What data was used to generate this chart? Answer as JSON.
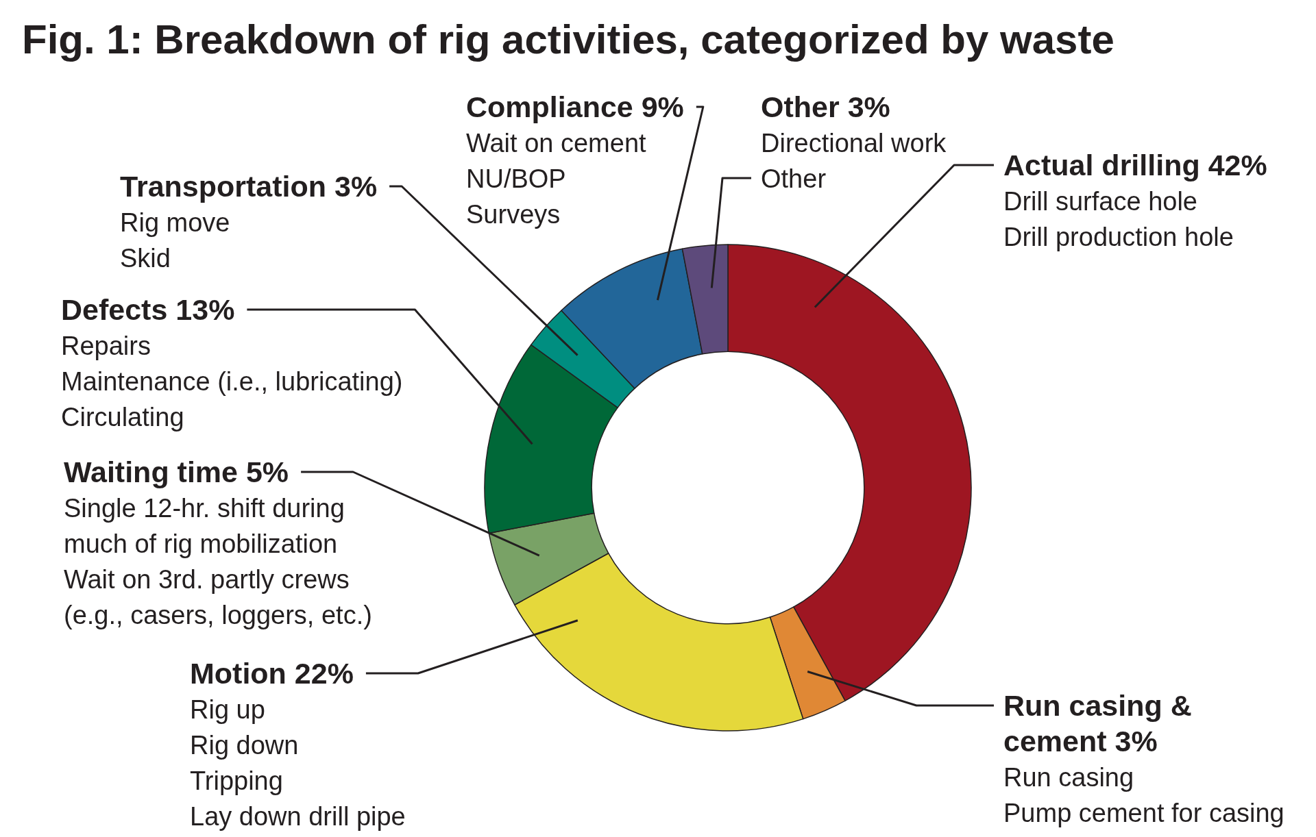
{
  "chart_data": {
    "type": "donut",
    "title": "Fig. 1: Breakdown of rig activities, categorized by waste",
    "categories": [
      "Actual drilling",
      "Run casing & cement",
      "Motion",
      "Waiting time",
      "Defects",
      "Transportation",
      "Compliance",
      "Other"
    ],
    "values": [
      42,
      3,
      22,
      5,
      13,
      3,
      9,
      3
    ],
    "colors": [
      "#9e1622",
      "#e08835",
      "#e5d83b",
      "#79a266",
      "#006838",
      "#008e80",
      "#226699",
      "#5d4a7b"
    ],
    "value_labels": [
      "42%",
      "3%",
      "22%",
      "5%",
      "13%",
      "3%",
      "9%",
      "3%"
    ],
    "annotations": [
      "Drill surface hole\nDrill production hole",
      "Run casing\nPump cement for casing",
      "Rig up\nRig down\nTripping\nLay down drill pipe",
      "Single 12-hr. shift during\nmuch of rig mobilization\nWait on 3rd. partly crews\n(e.g., casers, loggers, etc.)",
      "Repairs\nMaintenance (i.e., lubricating)\nCirculating",
      "Rig move\nSkid",
      "Wait on cement\nNU/BOP\nSurveys",
      "Directional work\nOther"
    ]
  }
}
